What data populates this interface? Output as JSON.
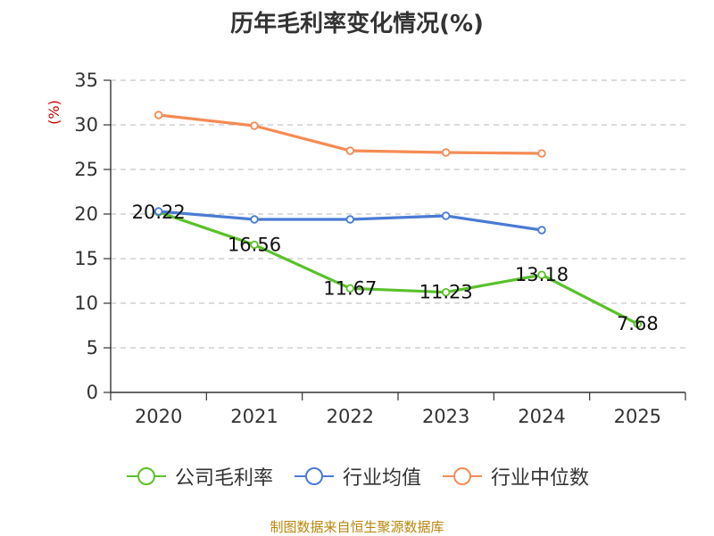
{
  "chart_data": {
    "type": "line",
    "title": "历年毛利率变化情况(%)",
    "ylabel": "(%)",
    "xlabel": "",
    "ylim": [
      0,
      35
    ],
    "yticks": [
      0,
      5,
      10,
      15,
      20,
      25,
      30,
      35
    ],
    "categories": [
      "2020",
      "2021",
      "2022",
      "2023",
      "2024",
      "2025"
    ],
    "grid": true,
    "legend_position": "bottom",
    "series": [
      {
        "name": "公司毛利率",
        "color": "#5ac12a",
        "values": [
          20.22,
          16.56,
          11.67,
          11.23,
          13.18,
          7.68
        ],
        "labels": [
          "20.22",
          "16.56",
          "11.67",
          "11.23",
          "13.18",
          "7.68"
        ]
      },
      {
        "name": "行业均值",
        "color": "#4a7bd4",
        "values": [
          20.3,
          19.4,
          19.4,
          19.8,
          18.2,
          null
        ]
      },
      {
        "name": "行业中位数",
        "color": "#f58b54",
        "values": [
          31.1,
          29.9,
          27.1,
          26.9,
          26.8,
          null
        ]
      }
    ]
  },
  "source_text": "制图数据来自恒生聚源数据库"
}
